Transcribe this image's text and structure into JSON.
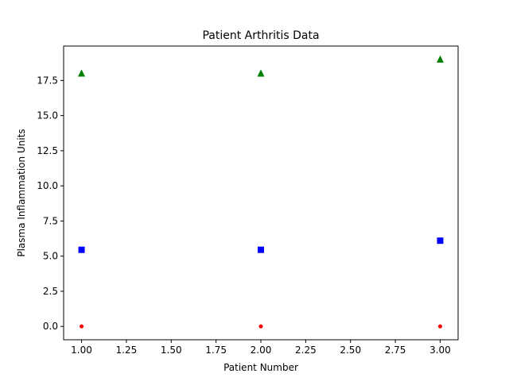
{
  "chart_data": {
    "type": "scatter",
    "title": "Patient Arthritis Data",
    "xlabel": "Patient Number",
    "ylabel": "Plasma Inflammation Units",
    "xlim": [
      0.9,
      3.1
    ],
    "ylim": [
      -0.95,
      19.95
    ],
    "grid": false,
    "x_ticks": [
      1.0,
      1.25,
      1.5,
      1.75,
      2.0,
      2.25,
      2.5,
      2.75,
      3.0
    ],
    "x_tick_labels": [
      "1.00",
      "1.25",
      "1.50",
      "1.75",
      "2.00",
      "2.25",
      "2.50",
      "2.75",
      "3.00"
    ],
    "y_ticks": [
      0.0,
      2.5,
      5.0,
      7.5,
      10.0,
      12.5,
      15.0,
      17.5
    ],
    "y_tick_labels": [
      "0.0",
      "2.5",
      "5.0",
      "7.5",
      "10.0",
      "12.5",
      "15.0",
      "17.5"
    ],
    "series": [
      {
        "marker": "circle",
        "color": "#ff0000",
        "x": [
          1,
          2,
          3
        ],
        "y": [
          0,
          0,
          0
        ]
      },
      {
        "marker": "square",
        "color": "#0000ff",
        "x": [
          1,
          2,
          3
        ],
        "y": [
          5.45,
          5.45,
          6.1
        ]
      },
      {
        "marker": "triangle",
        "color": "#008000",
        "x": [
          1,
          2,
          3
        ],
        "y": [
          18,
          18,
          19
        ]
      }
    ]
  }
}
